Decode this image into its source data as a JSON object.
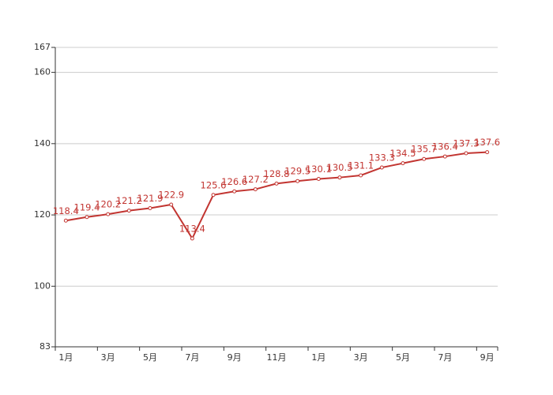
{
  "chart_data": {
    "type": "line",
    "categories": [
      "1月",
      null,
      "3月",
      null,
      "5月",
      null,
      "7月",
      null,
      "9月",
      null,
      "11月",
      null,
      "1月",
      null,
      "3月",
      null,
      "5月",
      null,
      "7月",
      null,
      "9月"
    ],
    "series": [
      {
        "color": "#c23531",
        "values": [
          118.4,
          119.4,
          120.2,
          121.2,
          121.9,
          122.9,
          113.4,
          125.6,
          126.6,
          127.2,
          128.8,
          129.5,
          130.1,
          130.5,
          131.1,
          133.3,
          134.5,
          135.7,
          136.4,
          137.3,
          137.6
        ]
      }
    ],
    "ylim": [
      83,
      167
    ],
    "yticks": [
      83,
      100,
      120,
      140,
      160,
      167
    ],
    "grid": true
  }
}
